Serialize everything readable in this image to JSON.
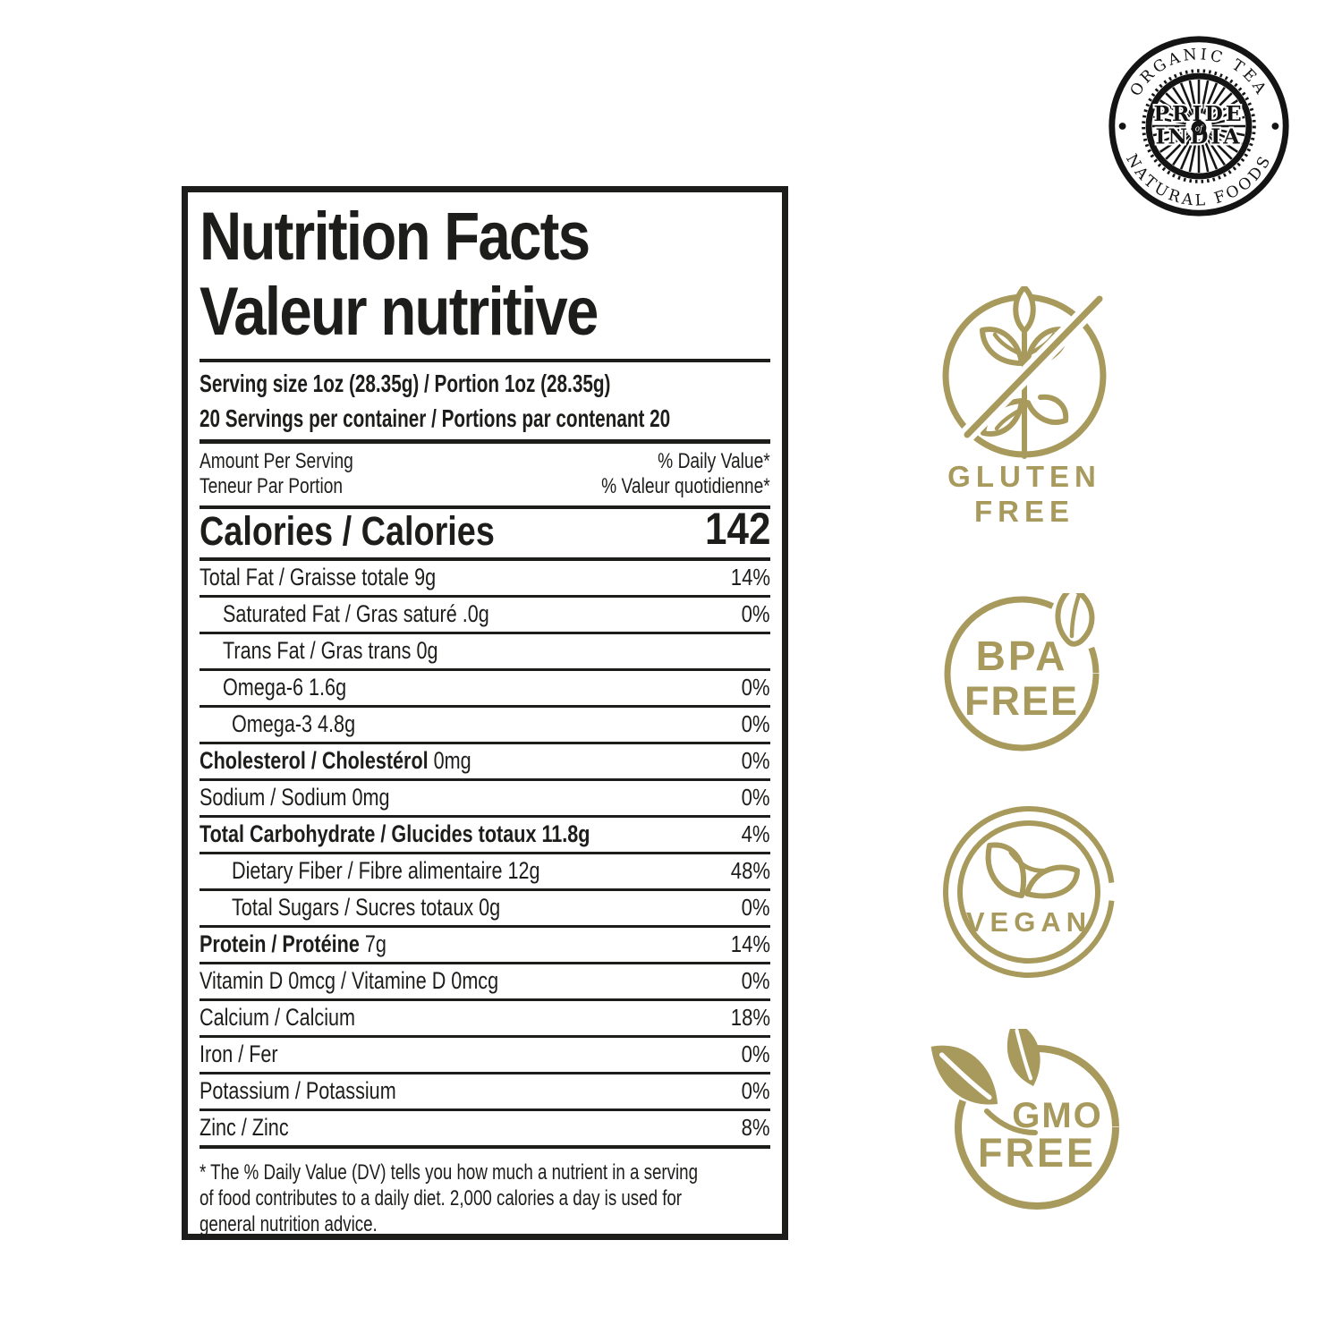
{
  "logo": {
    "arc_top": "ORGANIC TEA",
    "arc_bottom": "NATURAL FOODS",
    "center_line1": "PRIDE",
    "center_of": "of",
    "center_line2": "INDIA"
  },
  "label": {
    "title_en": "Nutrition Facts",
    "title_fr": "Valeur nutritive",
    "serving_line1": "Serving size 1oz (28.35g) / Portion 1oz (28.35g)",
    "serving_line2": "20 Servings per container / Portions par contenant 20",
    "amount_en": "Amount Per Serving",
    "amount_fr": "Teneur Par Portion",
    "dv_en": "% Daily Value*",
    "dv_fr": "% Valeur quotidienne*",
    "calories_label": "Calories / Calories",
    "calories_value": "142",
    "rows": [
      {
        "bold": "",
        "rest": "Total Fat / Graisse totale 9g",
        "value": "14%"
      },
      {
        "bold": "",
        "rest": "Saturated Fat / Gras saturé .0g",
        "value": "0%"
      },
      {
        "bold": "",
        "rest": "Trans Fat / Gras trans 0g",
        "value": ""
      },
      {
        "bold": "",
        "rest": "Omega-6 1.6g",
        "value": "0%"
      },
      {
        "bold": "",
        "rest": "Omega-3 4.8g",
        "value": "0%"
      },
      {
        "bold": "Cholesterol / Cholestérol",
        "rest": " 0mg",
        "value": "0%"
      },
      {
        "bold": "",
        "rest": "Sodium / Sodium 0mg",
        "value": "0%"
      },
      {
        "bold": "Total Carbohydrate / Glucides totaux 11.8g",
        "rest": "",
        "value": "4%"
      },
      {
        "bold": "",
        "rest": "Dietary Fiber / Fibre alimentaire 12g",
        "value": "48%"
      },
      {
        "bold": "",
        "rest": "Total Sugars / Sucres totaux 0g",
        "value": "0%"
      },
      {
        "bold": "Protein / Protéine",
        "rest": " 7g",
        "value": "14%"
      },
      {
        "bold": "",
        "rest": "Vitamin D 0mcg / Vitamine D 0mcg",
        "value": "0%"
      },
      {
        "bold": "",
        "rest": "Calcium / Calcium",
        "value": "18%"
      },
      {
        "bold": "",
        "rest": "Iron / Fer",
        "value": "0%"
      },
      {
        "bold": "",
        "rest": "Potassium / Potassium",
        "value": "0%"
      },
      {
        "bold": "",
        "rest": "Zinc / Zinc",
        "value": "8%"
      }
    ],
    "footnote_lines": [
      "* The % Daily Value (DV) tells you how much a nutrient in a serving",
      "of food contributes to a daily diet. 2,000 calories a day is used for",
      "general nutrition advice."
    ]
  },
  "badges": {
    "gluten": {
      "line1": "GLUTEN",
      "line2": "FREE"
    },
    "bpa": {
      "line1": "BPA",
      "line2": "FREE"
    },
    "vegan": {
      "label": "VEGAN"
    },
    "gmo": {
      "line1": "GMO",
      "line2": "FREE"
    }
  },
  "colors": {
    "badge_gold": "#a79a5c",
    "ink": "#1d1d1b"
  }
}
